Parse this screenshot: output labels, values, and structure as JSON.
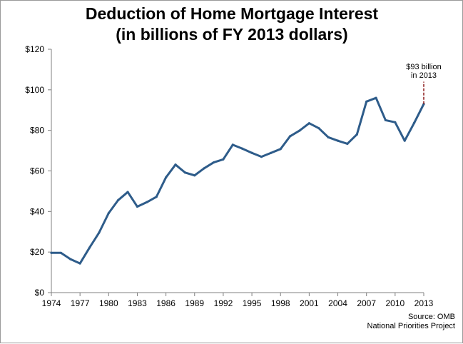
{
  "colors": {
    "line": "#2E5C8A",
    "annotation_marker": "#8B1A1A",
    "axis": "#808080"
  },
  "chart_data": {
    "type": "line",
    "title": "Deduction of Home Mortgage Interest",
    "subtitle": "(in billions of FY 2013 dollars)",
    "xlabel": "",
    "ylabel": "",
    "x": [
      1974,
      1975,
      1976,
      1977,
      1978,
      1979,
      1980,
      1981,
      1982,
      1983,
      1984,
      1985,
      1986,
      1987,
      1988,
      1989,
      1990,
      1991,
      1992,
      1993,
      1994,
      1995,
      1996,
      1997,
      1998,
      1999,
      2000,
      2001,
      2002,
      2003,
      2004,
      2005,
      2006,
      2007,
      2008,
      2009,
      2010,
      2011,
      2012,
      2013
    ],
    "series": [
      {
        "values": [
          19.6,
          19.6,
          16.5,
          14.4,
          22.2,
          29.6,
          39.2,
          45.6,
          49.6,
          42.4,
          44.6,
          47.2,
          56.8,
          63.1,
          59.2,
          57.8,
          61.3,
          64.2,
          65.7,
          72.9,
          71.0,
          68.9,
          67.0,
          68.9,
          70.8,
          77.1,
          79.9,
          83.5,
          81.1,
          76.6,
          74.9,
          73.4,
          78.0,
          94.2,
          96.0,
          85.0,
          84.0,
          74.9,
          83.7,
          93.0
        ]
      }
    ],
    "x_ticks": [
      "1974",
      "1977",
      "1980",
      "1983",
      "1986",
      "1989",
      "1992",
      "1995",
      "1998",
      "2001",
      "2004",
      "2007",
      "2010",
      "2013"
    ],
    "y_ticks": [
      "$0",
      "$20",
      "$40",
      "$60",
      "$80",
      "$100",
      "$120"
    ],
    "ylim": [
      0,
      120
    ],
    "grid": false,
    "legend": "none",
    "annotation": {
      "line1": "$93 billion",
      "line2": "in 2013",
      "x": 2013,
      "y_from": 93,
      "y_to": 104
    }
  },
  "source": {
    "line1": "Source: OMB",
    "line2": "National Priorities Project"
  }
}
